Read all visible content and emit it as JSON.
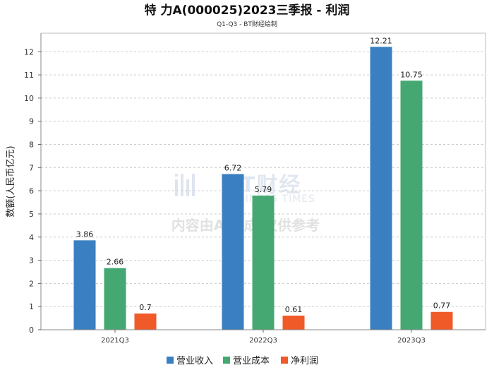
{
  "chart_data": {
    "type": "bar",
    "title": "特 力A(000025)2023三季报 - 利润",
    "subtitle": "Q1-Q3 - BT财经绘制",
    "ylabel": "数额(人民币亿元)",
    "xlabel": "",
    "ylim": [
      0,
      12.8
    ],
    "yticks": [
      0,
      1,
      2,
      3,
      4,
      5,
      6,
      7,
      8,
      9,
      10,
      11,
      12
    ],
    "grid": true,
    "legend_position": "bottom-center",
    "categories": [
      "2021Q3",
      "2022Q3",
      "2023Q3"
    ],
    "series": [
      {
        "name": "营业收入",
        "color": "#3a7fc1",
        "values": [
          3.86,
          6.72,
          12.21
        ]
      },
      {
        "name": "营业成本",
        "color": "#45a872",
        "values": [
          2.66,
          5.79,
          10.75
        ]
      },
      {
        "name": "净利润",
        "color": "#f05a28",
        "values": [
          0.7,
          0.61,
          0.77
        ]
      }
    ]
  },
  "watermark": {
    "brand": "BT财经",
    "brand_en": "BUSINESS TIMES",
    "notice": "内容由AI生成,仅供参考"
  }
}
